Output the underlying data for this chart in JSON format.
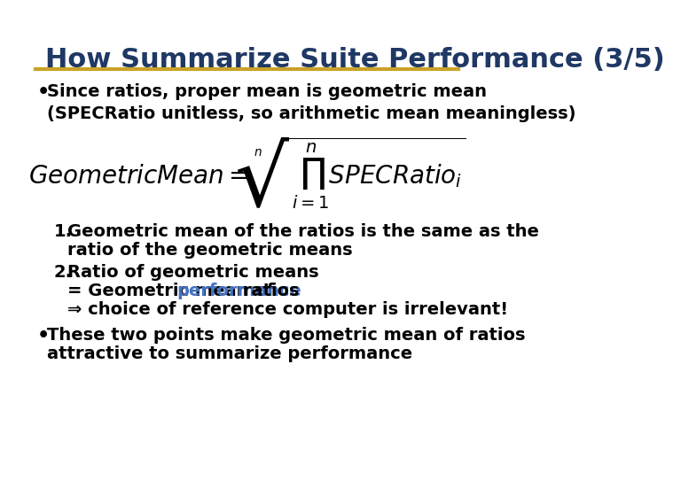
{
  "title": "How Summarize Suite Performance (3/5)",
  "title_color": "#1F3864",
  "title_fontsize": 22,
  "underline_color": "#C9A227",
  "background_color": "#FFFFFF",
  "bullet1": "Since ratios, proper mean is geometric mean\n(SPECRatio unitless, so arithmetic mean meaningless)",
  "formula": "GeometricMean = \\sqrt[n]{\\prod_{i=1}^{n} SPECRatio_i}",
  "item1_line1": "Geometric mean of the ratios is the same as the",
  "item1_line2": "ratio of the geometric means",
  "item2_line1": "Ratio of geometric means",
  "item2_line2_pre": "= Geometric mean of ",
  "item2_line2_highlight": "performance",
  "item2_line2_post": " ratios",
  "item2_line3": "⇒ choice of reference computer is irrelevant!",
  "bullet2_line1": "These two points make geometric mean of ratios",
  "bullet2_line2": "attractive to summarize performance",
  "highlight_color": "#4472C4",
  "text_color": "#000000",
  "text_fontsize": 14,
  "formula_fontsize": 18
}
